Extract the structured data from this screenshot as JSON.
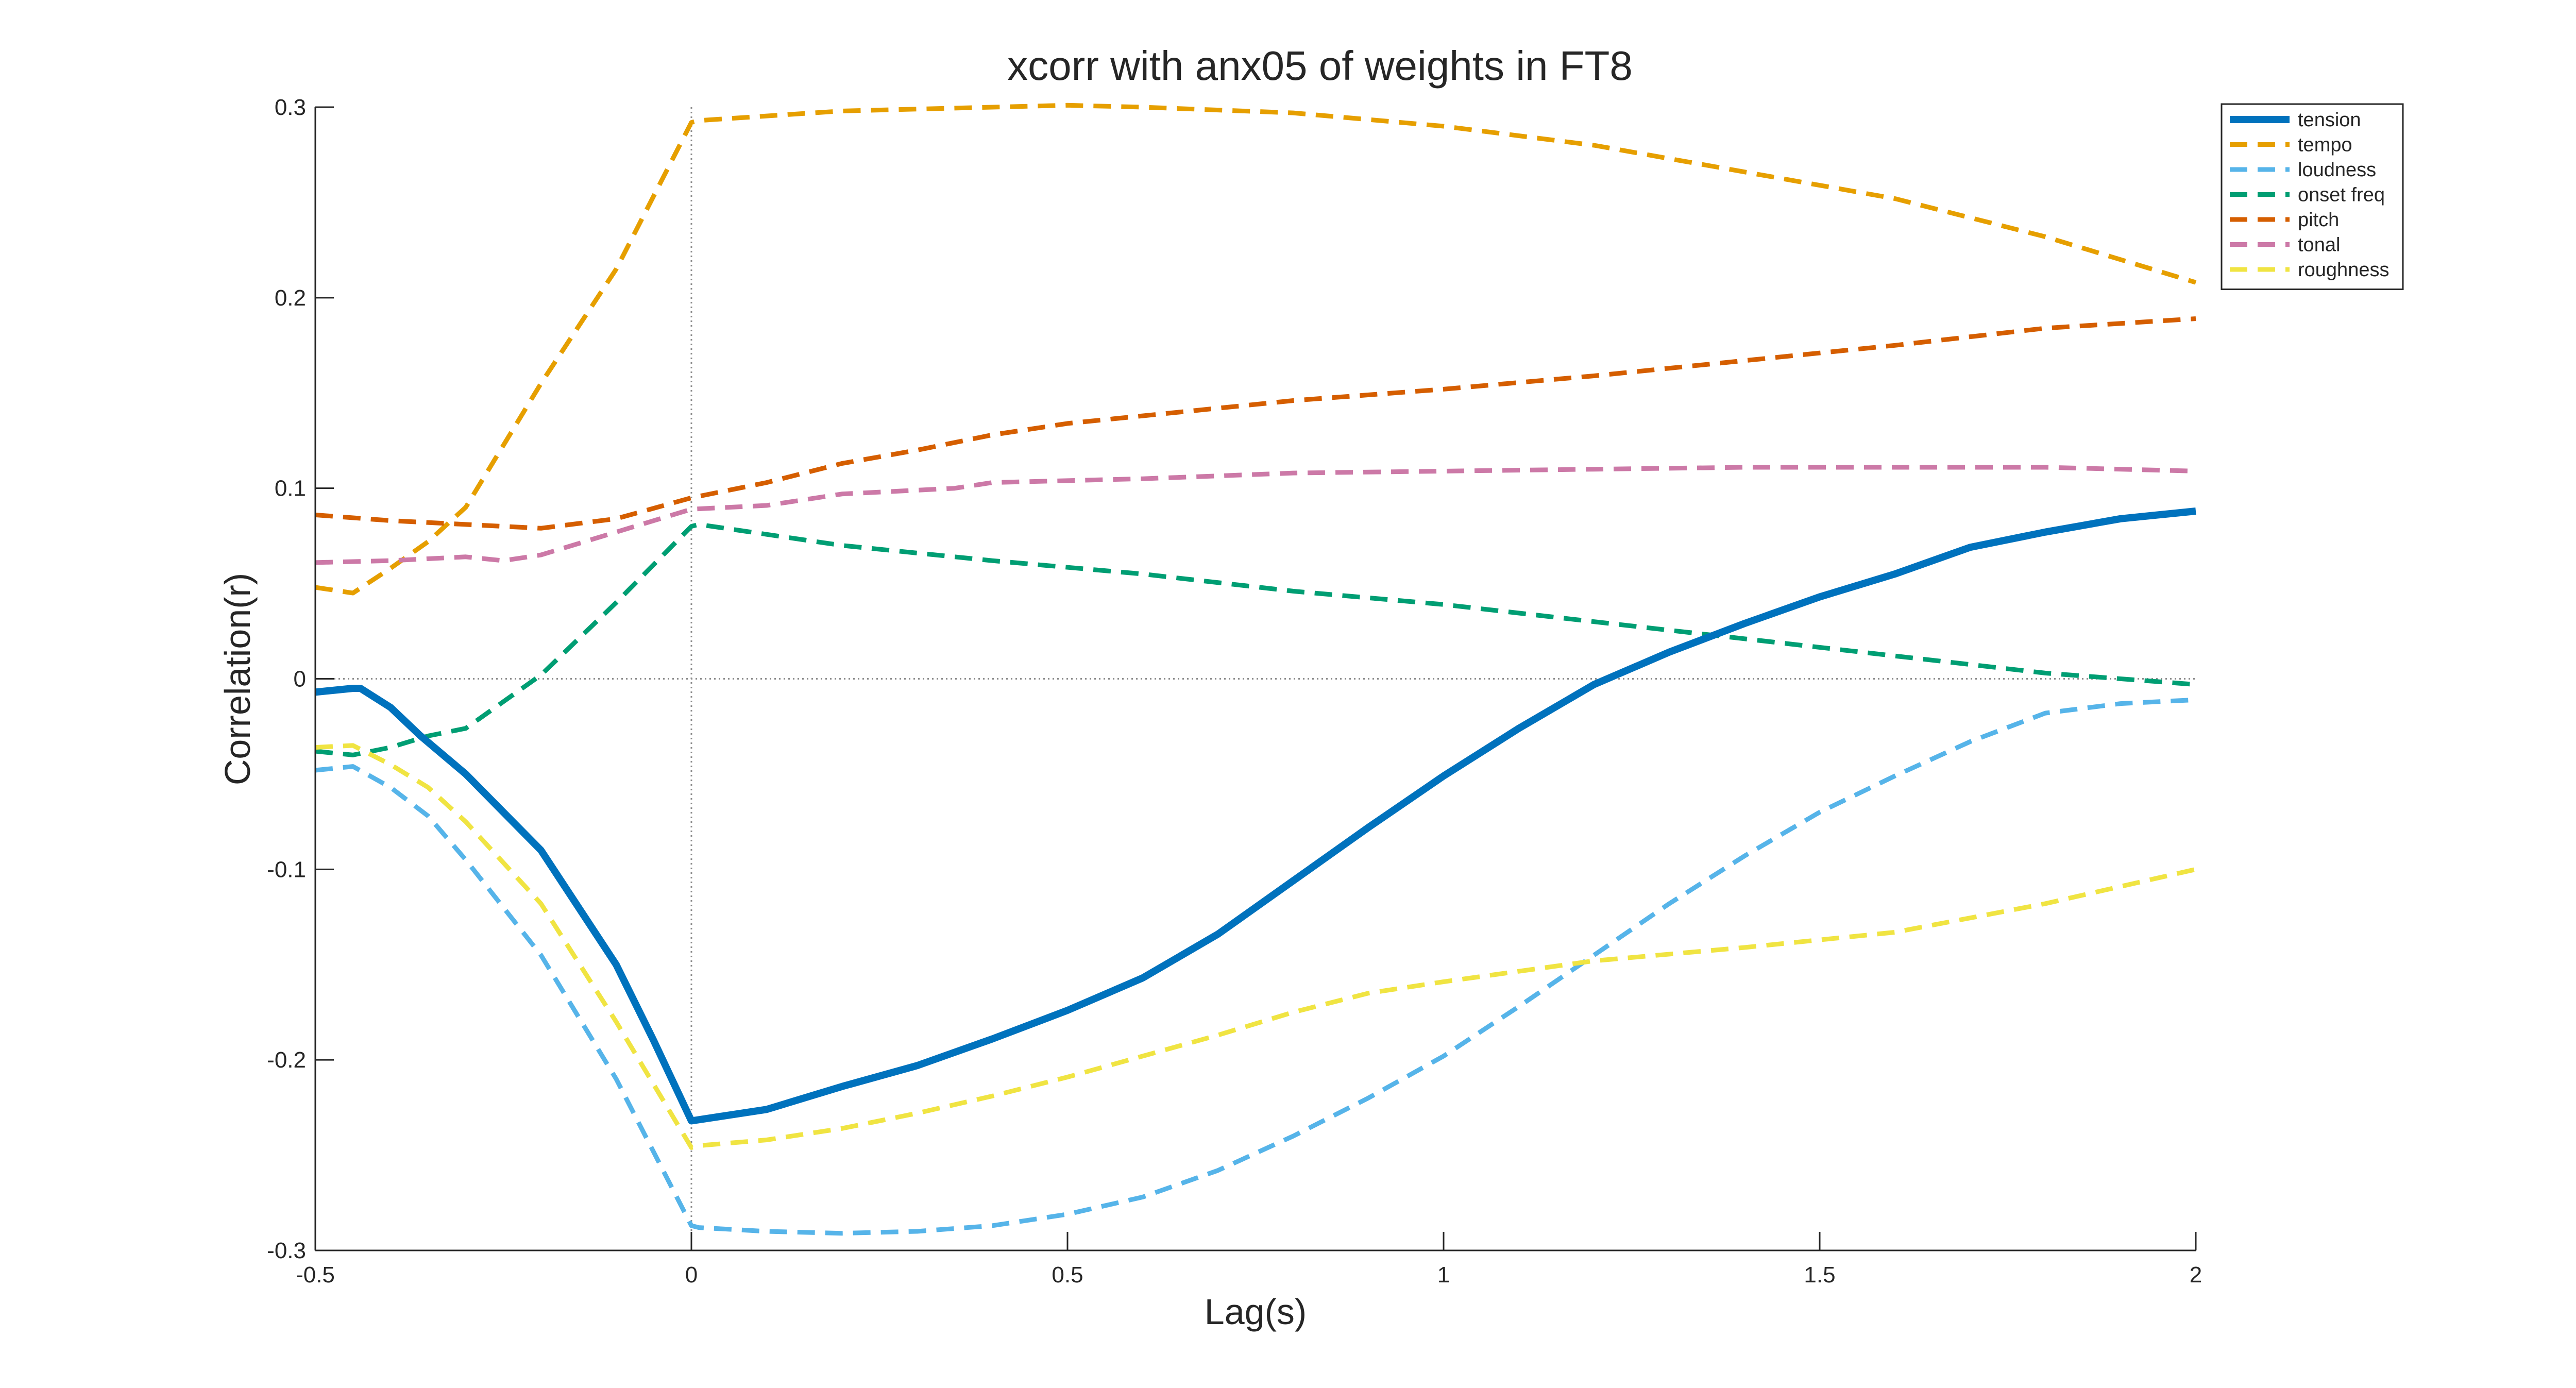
{
  "chart_data": {
    "type": "line",
    "title": "xcorr with anx05 of weights in FT8",
    "xlabel": "Lag(s)",
    "ylabel": "Correlation(r)",
    "xlim": [
      -0.5,
      2
    ],
    "ylim": [
      -0.3,
      0.3
    ],
    "xticks": [
      -0.5,
      0,
      0.5,
      1,
      1.5,
      2
    ],
    "yticks": [
      -0.3,
      -0.2,
      -0.1,
      0,
      0.1,
      0.2,
      0.3
    ],
    "xtick_labels": [
      "-0.5",
      "0",
      "0.5",
      "1",
      "1.5",
      "2"
    ],
    "ytick_labels": [
      "-0.3",
      "-0.2",
      "-0.1",
      "0",
      "0.1",
      "0.2",
      "0.3"
    ],
    "grid": false,
    "reference_lines": {
      "x0": true,
      "y0": true
    },
    "legend_position": "top-right",
    "series": [
      {
        "name": "tension",
        "style": "solid",
        "color": "#0072BD",
        "x": [
          -0.5,
          -0.45,
          -0.44,
          -0.4,
          -0.36,
          -0.3,
          -0.2,
          -0.1,
          -0.05,
          0,
          0.1,
          0.2,
          0.3,
          0.4,
          0.5,
          0.6,
          0.7,
          0.8,
          0.9,
          1.0,
          1.1,
          1.2,
          1.3,
          1.4,
          1.5,
          1.6,
          1.7,
          1.8,
          1.9,
          2.0
        ],
        "y": [
          -0.007,
          -0.005,
          -0.005,
          -0.015,
          -0.03,
          -0.05,
          -0.09,
          -0.15,
          -0.19,
          -0.232,
          -0.226,
          -0.214,
          -0.203,
          -0.189,
          -0.174,
          -0.157,
          -0.134,
          -0.106,
          -0.078,
          -0.051,
          -0.026,
          -0.003,
          0.014,
          0.029,
          0.043,
          0.055,
          0.069,
          0.077,
          0.084,
          0.088
        ]
      },
      {
        "name": "tempo",
        "style": "dashed",
        "color": "#E69F00",
        "x": [
          -0.5,
          -0.45,
          -0.4,
          -0.35,
          -0.3,
          -0.2,
          -0.1,
          0,
          0.01,
          0.2,
          0.4,
          0.5,
          0.6,
          0.8,
          1.0,
          1.2,
          1.4,
          1.6,
          1.8,
          2.0
        ],
        "y": [
          0.048,
          0.045,
          0.058,
          0.072,
          0.09,
          0.155,
          0.215,
          0.292,
          0.293,
          0.298,
          0.3,
          0.301,
          0.3,
          0.297,
          0.29,
          0.28,
          0.266,
          0.252,
          0.232,
          0.208
        ]
      },
      {
        "name": "loudness",
        "style": "dashed",
        "color": "#56B4E9",
        "x": [
          -0.5,
          -0.45,
          -0.4,
          -0.35,
          -0.3,
          -0.2,
          -0.1,
          0,
          0.01,
          0.1,
          0.2,
          0.3,
          0.4,
          0.5,
          0.6,
          0.7,
          0.8,
          0.9,
          1.0,
          1.1,
          1.2,
          1.3,
          1.4,
          1.5,
          1.6,
          1.7,
          1.8,
          1.9,
          2.0
        ],
        "y": [
          -0.048,
          -0.046,
          -0.057,
          -0.072,
          -0.095,
          -0.145,
          -0.21,
          -0.287,
          -0.288,
          -0.29,
          -0.291,
          -0.29,
          -0.287,
          -0.281,
          -0.272,
          -0.258,
          -0.24,
          -0.22,
          -0.198,
          -0.172,
          -0.145,
          -0.118,
          -0.093,
          -0.07,
          -0.051,
          -0.033,
          -0.018,
          -0.013,
          -0.011
        ]
      },
      {
        "name": "onset freq",
        "style": "dashed",
        "color": "#009E73",
        "x": [
          -0.5,
          -0.45,
          -0.4,
          -0.35,
          -0.3,
          -0.2,
          -0.1,
          0,
          0.01,
          0.2,
          0.4,
          0.6,
          0.8,
          1.0,
          1.2,
          1.4,
          1.6,
          1.8,
          2.0
        ],
        "y": [
          -0.038,
          -0.04,
          -0.036,
          -0.03,
          -0.026,
          0.002,
          0.04,
          0.08,
          0.081,
          0.07,
          0.062,
          0.055,
          0.046,
          0.039,
          0.03,
          0.021,
          0.012,
          0.003,
          -0.003
        ]
      },
      {
        "name": "pitch",
        "style": "dashed",
        "color": "#D55E00",
        "x": [
          -0.5,
          -0.4,
          -0.3,
          -0.2,
          -0.1,
          0,
          0.1,
          0.2,
          0.3,
          0.4,
          0.5,
          0.6,
          0.8,
          1.0,
          1.2,
          1.4,
          1.6,
          1.8,
          2.0
        ],
        "y": [
          0.086,
          0.083,
          0.081,
          0.079,
          0.084,
          0.095,
          0.103,
          0.113,
          0.12,
          0.128,
          0.134,
          0.138,
          0.146,
          0.152,
          0.159,
          0.167,
          0.175,
          0.184,
          0.189
        ]
      },
      {
        "name": "tonal",
        "style": "dashed",
        "color": "#CC79A7",
        "x": [
          -0.5,
          -0.4,
          -0.3,
          -0.25,
          -0.2,
          -0.1,
          0,
          0.1,
          0.2,
          0.35,
          0.4,
          0.6,
          0.8,
          1.0,
          1.2,
          1.4,
          1.6,
          1.8,
          2.0
        ],
        "y": [
          0.061,
          0.062,
          0.064,
          0.062,
          0.065,
          0.077,
          0.089,
          0.091,
          0.097,
          0.1,
          0.103,
          0.105,
          0.108,
          0.109,
          0.11,
          0.111,
          0.111,
          0.111,
          0.109
        ]
      },
      {
        "name": "roughness",
        "style": "dashed",
        "color": "#F0E442",
        "x": [
          -0.5,
          -0.45,
          -0.4,
          -0.35,
          -0.3,
          -0.2,
          -0.1,
          0,
          0.01,
          0.1,
          0.2,
          0.3,
          0.4,
          0.5,
          0.6,
          0.7,
          0.8,
          0.9,
          1.0,
          1.2,
          1.4,
          1.6,
          1.8,
          2.0
        ],
        "y": [
          -0.036,
          -0.035,
          -0.045,
          -0.057,
          -0.075,
          -0.118,
          -0.18,
          -0.246,
          -0.245,
          -0.242,
          -0.236,
          -0.228,
          -0.219,
          -0.209,
          -0.198,
          -0.187,
          -0.175,
          -0.165,
          -0.159,
          -0.148,
          -0.141,
          -0.133,
          -0.118,
          -0.1
        ]
      }
    ]
  }
}
